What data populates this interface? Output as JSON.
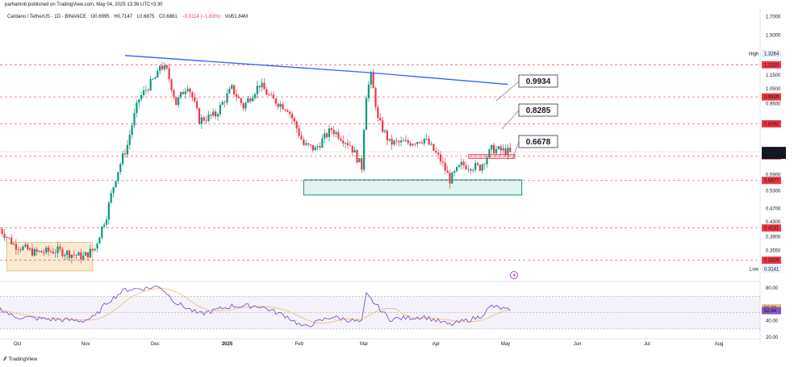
{
  "publisher_line": "parhamnb published on TradingView.com, May 04, 2025 13:36 UTC+3:30",
  "symbol_line": {
    "name": "Cardano / TetherUS · 1D · BINANCE",
    "open": "O0.6995",
    "high": "H0.7147",
    "low": "L0.6875",
    "close": "C0.6881",
    "change": "−0.0114 (−1.63%)",
    "volume": "Vol51.84M"
  },
  "logo_text": "TradingView",
  "colors": {
    "up": "#089981",
    "down": "#f23645",
    "trendline": "#2962ff",
    "support_box": "#089981",
    "base_box": "#f0c27b",
    "rsi": "#7e57c2",
    "rsi_ma": "#f0c27b"
  },
  "chart_data": {
    "type": "candlestick",
    "price_axis": {
      "scale": "log",
      "range": [
        0.295,
        1.78
      ],
      "ticks": [
        "1.7000",
        "1.5000",
        "1.1500",
        "1.0500",
        "0.9500",
        "0.5900",
        "0.5300",
        "0.4700",
        "0.4300",
        "0.3900",
        "0.3550"
      ],
      "tick_values": [
        1.7,
        1.5,
        1.15,
        1.05,
        0.95,
        0.59,
        0.53,
        0.47,
        0.43,
        0.39,
        0.355
      ]
    },
    "time_axis": {
      "labels": [
        "Oct",
        "Nov",
        "Dec",
        "2025",
        "Feb",
        "Mar",
        "Apr",
        "May",
        "Jun",
        "Jul",
        "Aug"
      ],
      "dates": [
        "2024-10-01",
        "2024-11-01",
        "2024-12-01",
        "2025-01-01",
        "2025-02-01",
        "2025-03-01",
        "2025-04-01",
        "2025-05-01",
        "2025-06-01",
        "2025-07-01",
        "2025-08-01"
      ]
    },
    "series": [
      {
        "keypoints_date_close": [
          [
            "2024-09-25",
            0.41
          ],
          [
            "2024-10-01",
            0.37
          ],
          [
            "2024-10-10",
            0.35
          ],
          [
            "2024-10-20",
            0.355
          ],
          [
            "2024-10-31",
            0.34
          ],
          [
            "2024-11-05",
            0.36
          ],
          [
            "2024-11-10",
            0.45
          ],
          [
            "2024-11-14",
            0.58
          ],
          [
            "2024-11-19",
            0.72
          ],
          [
            "2024-11-24",
            0.98
          ],
          [
            "2024-12-02",
            1.15
          ],
          [
            "2024-12-03",
            1.23
          ],
          [
            "2024-12-06",
            1.18
          ],
          [
            "2024-12-10",
            0.95
          ],
          [
            "2024-12-15",
            1.08
          ],
          [
            "2024-12-20",
            0.85
          ],
          [
            "2024-12-27",
            0.88
          ],
          [
            "2025-01-03",
            1.05
          ],
          [
            "2025-01-08",
            0.93
          ],
          [
            "2025-01-15",
            1.08
          ],
          [
            "2025-01-20",
            0.98
          ],
          [
            "2025-01-27",
            0.92
          ],
          [
            "2025-02-03",
            0.72
          ],
          [
            "2025-02-08",
            0.7
          ],
          [
            "2025-02-15",
            0.8
          ],
          [
            "2025-02-23",
            0.72
          ],
          [
            "2025-02-28",
            0.62
          ],
          [
            "2025-03-02",
            1.01
          ],
          [
            "2025-03-04",
            1.14
          ],
          [
            "2025-03-07",
            0.85
          ],
          [
            "2025-03-12",
            0.73
          ],
          [
            "2025-03-20",
            0.73
          ],
          [
            "2025-03-27",
            0.75
          ],
          [
            "2025-04-03",
            0.65
          ],
          [
            "2025-04-07",
            0.57
          ],
          [
            "2025-04-12",
            0.63
          ],
          [
            "2025-04-20",
            0.62
          ],
          [
            "2025-04-25",
            0.7
          ],
          [
            "2025-05-03",
            0.6881
          ]
        ]
      }
    ],
    "horizontal_levels": [
      "1.2310",
      "0.9929",
      "0.8292",
      "0.6693",
      "0.5677",
      "0.4131",
      "0.3329"
    ],
    "level_values": [
      1.231,
      0.9929,
      0.8292,
      0.6693,
      0.5677,
      0.4131,
      0.3329
    ],
    "high": {
      "label": "High",
      "value": "1.3264"
    },
    "low": {
      "label": "Low",
      "value": "0.3141"
    },
    "last_price": {
      "value": "0.6881",
      "countdown": "13:53:52"
    },
    "trendline": [
      [
        "2024-11-18",
        1.31
      ],
      [
        "2025-03-02",
        1.17
      ],
      [
        "2025-05-02",
        1.08
      ]
    ],
    "annotations": [
      "0.9934",
      "0.8285",
      "0.6678"
    ],
    "annotation_values": [
      0.9934,
      0.8285,
      0.6678
    ],
    "support_zone": {
      "from": "2025-02-03",
      "to": "2025-05-08",
      "low": 0.515,
      "high": 0.57
    },
    "base_zone": {
      "from": "2024-09-28",
      "to": "2024-11-04",
      "low": 0.31,
      "high": 0.375
    },
    "resistance_marker": {
      "from": "2025-04-15",
      "to": "2025-05-05",
      "low": 0.658,
      "high": 0.675
    },
    "rsi": {
      "axis_ticks": [
        "80.00",
        "40.00",
        "20.00"
      ],
      "tick_values": [
        80,
        40,
        20
      ],
      "range": [
        20,
        85
      ],
      "value": "52.44",
      "ma_value": "55.88",
      "keypoints": [
        [
          "2024-09-25",
          55
        ],
        [
          "2024-10-01",
          45
        ],
        [
          "2024-10-15",
          42
        ],
        [
          "2024-10-31",
          40
        ],
        [
          "2024-11-05",
          45
        ],
        [
          "2024-11-10",
          62
        ],
        [
          "2024-11-18",
          78
        ],
        [
          "2024-11-28",
          80
        ],
        [
          "2024-12-03",
          82
        ],
        [
          "2024-12-10",
          62
        ],
        [
          "2024-12-20",
          48
        ],
        [
          "2025-01-03",
          58
        ],
        [
          "2025-01-15",
          58
        ],
        [
          "2025-01-27",
          45
        ],
        [
          "2025-02-03",
          32
        ],
        [
          "2025-02-15",
          45
        ],
        [
          "2025-02-28",
          38
        ],
        [
          "2025-03-02",
          72
        ],
        [
          "2025-03-12",
          42
        ],
        [
          "2025-03-27",
          45
        ],
        [
          "2025-04-07",
          35
        ],
        [
          "2025-04-20",
          45
        ],
        [
          "2025-04-25",
          58
        ],
        [
          "2025-05-03",
          52.44
        ]
      ]
    }
  }
}
